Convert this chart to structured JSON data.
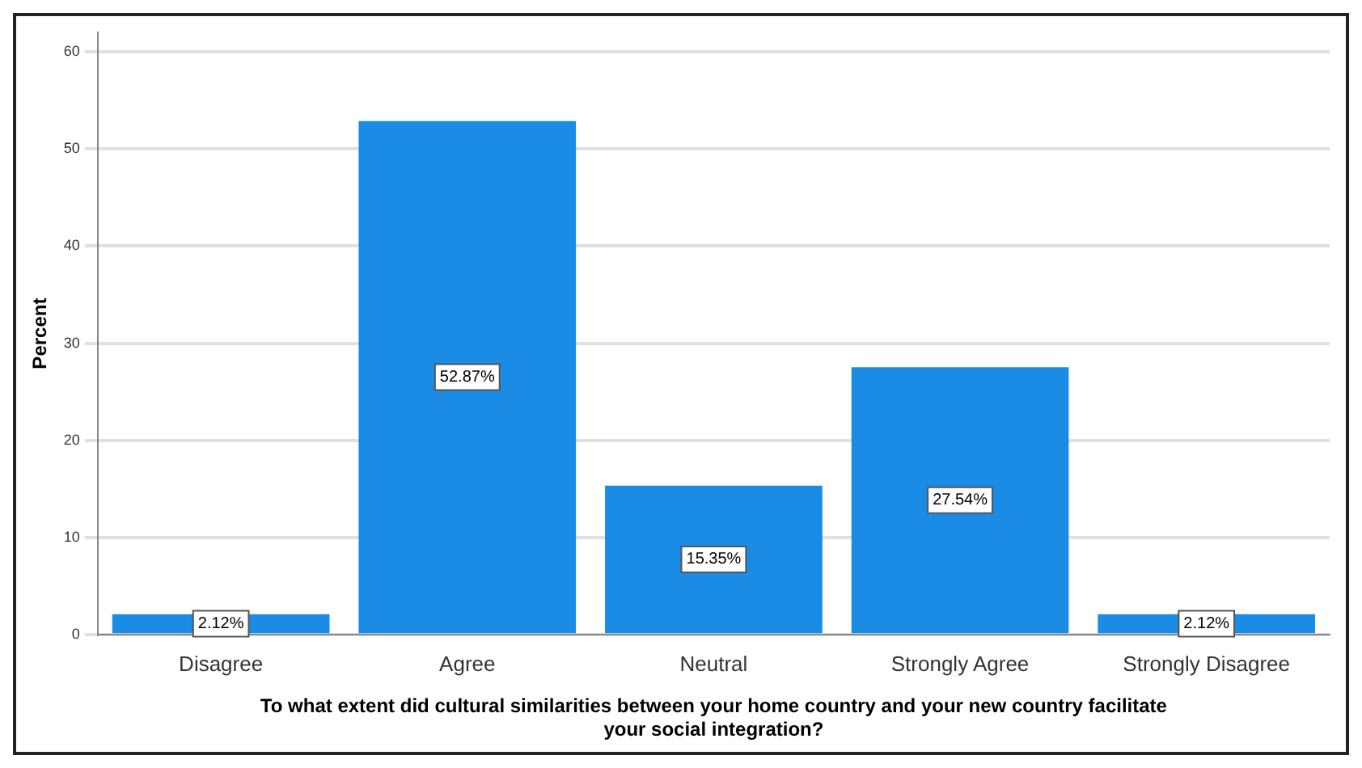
{
  "chart_data": {
    "type": "bar",
    "xlabel": "To what extent did cultural similarities between your home country and your new country facilitate your social integration?",
    "ylabel": "Percent",
    "categories": [
      "Disagree",
      "Agree",
      "Neutral",
      "Strongly Agree",
      "Strongly Disagree"
    ],
    "values": [
      2.12,
      52.87,
      15.35,
      27.54,
      2.12
    ],
    "value_labels": [
      "2.12%",
      "52.87%",
      "15.35%",
      "27.54%",
      "2.12%"
    ],
    "color": "#1a8ce6",
    "ylim": [
      0,
      62
    ],
    "yticks": [
      0,
      10,
      20,
      30,
      40,
      50,
      60
    ],
    "grid": "y"
  }
}
